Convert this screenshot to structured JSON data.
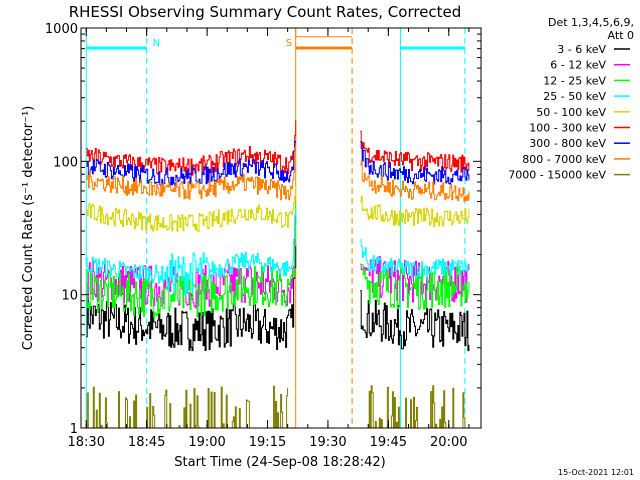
{
  "chart_data": {
    "type": "line",
    "title": "RHESSI Observing Summary Count Rates, Corrected",
    "xlabel": "Start Time (24-Sep-08 18:28:42)",
    "ylabel": "Corrected Count Rate (s⁻¹ detector⁻¹)",
    "yscale": "log",
    "ylim": [
      1,
      1000
    ],
    "xlim": [
      "18:28:42",
      "20:08:00"
    ],
    "x_ticks": [
      "18:30",
      "18:45",
      "19:00",
      "19:15",
      "19:30",
      "19:45",
      "20:00"
    ],
    "y_ticks": [
      "1",
      "10",
      "100",
      "1000"
    ],
    "grid": false,
    "legend_position": "right",
    "legend_header": [
      "Det 1,3,4,5,6,9,",
      "Att 0"
    ],
    "footer_date": "15-Oct-2021 12:01",
    "series": [
      {
        "name": "3 - 6 keV",
        "color": "#000000",
        "segments": [
          {
            "x": [
              "18:30",
              "18:40",
              "18:50",
              "19:00",
              "19:10",
              "19:15",
              "19:20",
              "19:21",
              "19:22"
            ],
            "y": [
              7,
              6,
              5.5,
              5.5,
              6,
              5.5,
              5.5,
              6,
              20
            ]
          },
          {
            "x": [
              "19:38",
              "19:40",
              "19:45",
              "19:50",
              "20:00",
              "20:05"
            ],
            "y": [
              8,
              6.5,
              6,
              5.5,
              5.5,
              5.5
            ]
          }
        ]
      },
      {
        "name": "6 - 12 keV",
        "color": "#ff00ff",
        "segments": [
          {
            "x": [
              "18:30",
              "18:40",
              "18:50",
              "19:00",
              "19:05",
              "19:10",
              "19:15",
              "19:20",
              "19:21",
              "19:22"
            ],
            "y": [
              13,
              12,
              11.5,
              11.5,
              12,
              12.5,
              12,
              11.5,
              12,
              40
            ]
          },
          {
            "x": [
              "19:38",
              "19:40",
              "19:45",
              "19:50",
              "20:00",
              "20:05"
            ],
            "y": [
              18,
              14,
              13,
              12.5,
              12.5,
              12.5
            ]
          }
        ]
      },
      {
        "name": "12 - 25 keV",
        "color": "#00ff00",
        "segments": [
          {
            "x": [
              "18:30",
              "18:40",
              "18:50",
              "19:00",
              "19:05",
              "19:10",
              "19:15",
              "19:20",
              "19:21",
              "19:22"
            ],
            "y": [
              11,
              10,
              9.5,
              10,
              11,
              12,
              11.5,
              10.5,
              11,
              35
            ]
          },
          {
            "x": [
              "19:38",
              "19:40",
              "19:45",
              "19:50",
              "20:00",
              "20:05"
            ],
            "y": [
              16,
              12.5,
              11.5,
              11,
              11.5,
              11.5
            ]
          }
        ]
      },
      {
        "name": "25 - 50 keV",
        "color": "#00ffff",
        "segments": [
          {
            "x": [
              "18:30",
              "18:40",
              "18:50",
              "19:00",
              "19:05",
              "19:10",
              "19:15",
              "19:20",
              "19:21",
              "19:22"
            ],
            "y": [
              17,
              15,
              14,
              15,
              16.5,
              18,
              17,
              15.5,
              16,
              45
            ]
          },
          {
            "x": [
              "19:38",
              "19:40",
              "19:45",
              "19:50",
              "20:00",
              "20:05"
            ],
            "y": [
              24,
              17,
              16,
              15.5,
              16,
              16
            ]
          }
        ]
      },
      {
        "name": "50 - 100 keV",
        "color": "#d7d700",
        "segments": [
          {
            "x": [
              "18:30",
              "18:40",
              "18:50",
              "19:00",
              "19:05",
              "19:10",
              "19:15",
              "19:20",
              "19:21",
              "19:22"
            ],
            "y": [
              42,
              37,
              34,
              35,
              39,
              42,
              40,
              36,
              36,
              60
            ]
          },
          {
            "x": [
              "19:38",
              "19:40",
              "19:45",
              "19:50",
              "20:00",
              "20:05"
            ],
            "y": [
              50,
              42,
              39,
              38,
              38,
              38
            ]
          }
        ]
      },
      {
        "name": "100 - 300 keV",
        "color": "#ff0000",
        "segments": [
          {
            "x": [
              "18:30",
              "18:40",
              "18:50",
              "19:00",
              "19:05",
              "19:10",
              "19:15",
              "19:20",
              "19:21",
              "19:22"
            ],
            "y": [
              110,
              98,
              90,
              94,
              105,
              112,
              105,
              95,
              95,
              180
            ]
          },
          {
            "x": [
              "19:38",
              "19:40",
              "19:45",
              "19:50",
              "20:00",
              "20:05"
            ],
            "y": [
              145,
              115,
              105,
              100,
              98,
              96
            ]
          }
        ]
      },
      {
        "name": "300 - 800 keV",
        "color": "#0000ff",
        "segments": [
          {
            "x": [
              "18:30",
              "18:40",
              "18:50",
              "19:00",
              "19:05",
              "19:10",
              "19:15",
              "19:20",
              "19:21",
              "19:22"
            ],
            "y": [
              92,
              82,
              76,
              79,
              87,
              92,
              86,
              78,
              78,
              140
            ]
          },
          {
            "x": [
              "19:38",
              "19:40",
              "19:45",
              "19:50",
              "20:00",
              "20:05"
            ],
            "y": [
              120,
              92,
              84,
              80,
              78,
              77
            ]
          }
        ]
      },
      {
        "name": "800 - 7000 keV",
        "color": "#ff8000",
        "segments": [
          {
            "x": [
              "18:30",
              "18:40",
              "18:50",
              "19:00",
              "19:05",
              "19:10",
              "19:15",
              "19:20",
              "19:21",
              "19:22"
            ],
            "y": [
              73,
              65,
              60,
              61,
              66,
              69,
              64,
              58,
              57,
              140
            ]
          },
          {
            "x": [
              "19:22",
              "19:22",
              "19:36"
            ],
            "y": [
              1000,
              860,
              860
            ]
          },
          {
            "x": [
              "19:38",
              "19:40",
              "19:45",
              "19:50",
              "20:00",
              "20:05"
            ],
            "y": [
              90,
              70,
              64,
              61,
              59,
              58
            ]
          }
        ]
      },
      {
        "name": "7000 - 15000 keV",
        "color": "#808000",
        "segments": [
          {
            "x": [
              "18:30",
              "18:31",
              "18:45",
              "19:00",
              "19:20"
            ],
            "y": [
              1,
              1.7,
              1,
              1,
              1
            ]
          },
          {
            "x": [
              "19:40",
              "19:50",
              "19:55",
              "20:05"
            ],
            "y": [
              1,
              1,
              1,
              1
            ]
          }
        ]
      }
    ],
    "annotations": [
      {
        "label": "N",
        "x_start": "18:30",
        "x_end": "18:45",
        "color": "#00ffff"
      },
      {
        "label": "S",
        "x_start": "19:22",
        "x_end": "19:36",
        "color": "#ff8000"
      },
      {
        "label": "",
        "x_start": "19:48",
        "x_end": "20:04",
        "color": "#00ffff"
      }
    ]
  }
}
